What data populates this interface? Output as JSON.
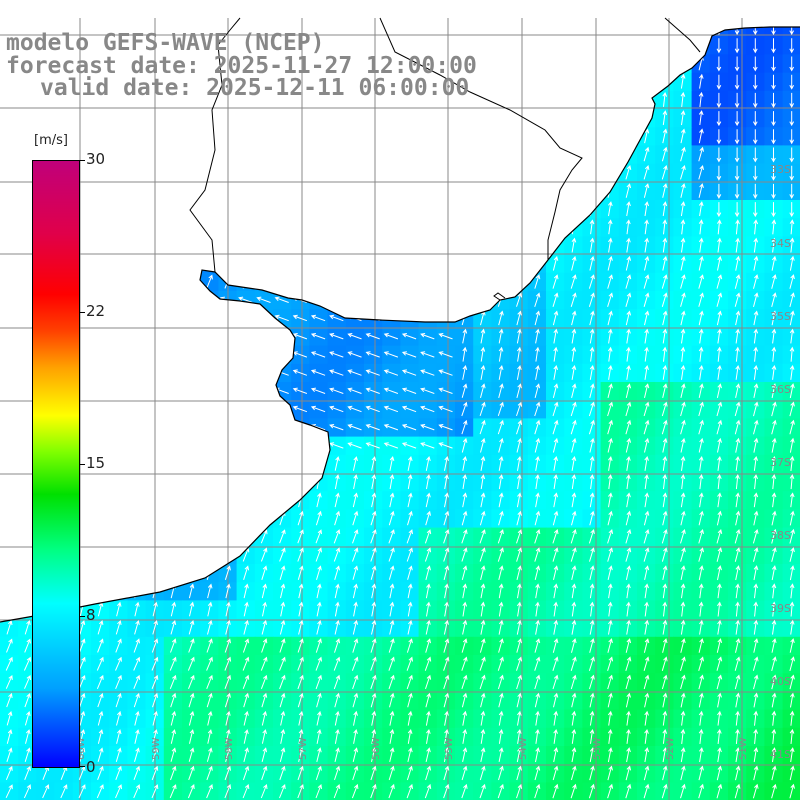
{
  "title": {
    "line1": "modelo GEFS-WAVE (NCEP)",
    "line2": "forecast date: 2025-11-27 12:00:00",
    "line3": "valid date: 2025-12-11 06:00:00"
  },
  "colorbar": {
    "unit": "[m/s]",
    "labels": [
      "30",
      "22",
      "15",
      "8",
      "0"
    ],
    "min": 0,
    "max": 30,
    "colors": [
      "#0000ff",
      "#00a0ff",
      "#00ffff",
      "#00ff80",
      "#00e000",
      "#80ff00",
      "#ffff00",
      "#ffa000",
      "#ff0000",
      "#c0007a"
    ]
  },
  "map": {
    "variable": "wind speed and direction",
    "lat_labels": [
      "33S",
      "34S",
      "35S",
      "36S",
      "37S",
      "38S",
      "39S",
      "40S",
      "41S"
    ],
    "lon_labels": [
      "60W",
      "59W",
      "58W",
      "57W",
      "56W",
      "55W",
      "54W",
      "53W",
      "52W",
      "51W"
    ],
    "land_color": "#ffffff",
    "coast_color": "#000000",
    "grid_color": "#888888",
    "arrow_color": "#ffffff",
    "dominant_wind": "from south-southwest, blowing north-northeast",
    "speed_range_ms": [
      4,
      11
    ]
  }
}
